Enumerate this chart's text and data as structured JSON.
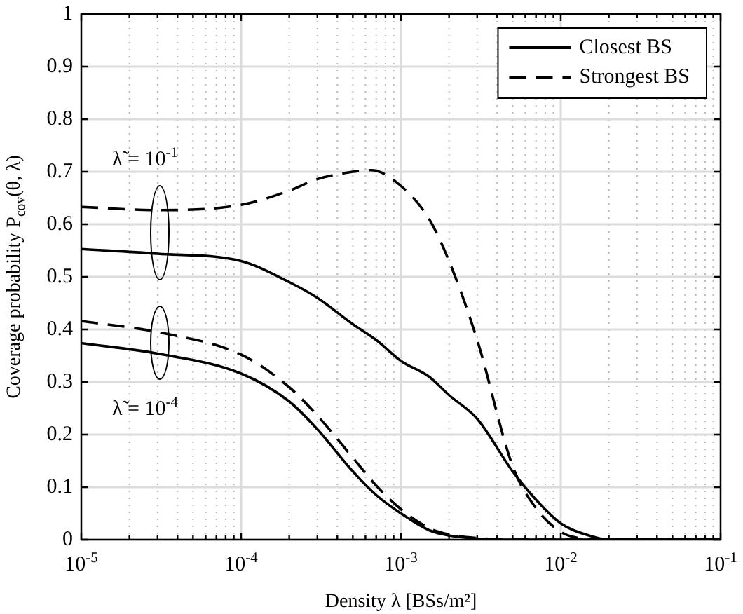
{
  "chart_data": {
    "type": "line",
    "xlabel": "Density λ [BSs/m²]",
    "ylabel": "Coverage probability P$_{cov}$(θ, λ)",
    "log": "x",
    "grid": true,
    "legend": "top right",
    "marker": "none",
    "xlim": [
      1e-05,
      0.1
    ],
    "ylim": [
      0,
      1
    ],
    "xticks": [
      {
        "value": 1e-05,
        "label": "10$^{-5}$"
      },
      {
        "value": 2e-05,
        "label": null
      },
      {
        "value": 3e-05,
        "label": null
      },
      {
        "value": 4e-05,
        "label": null
      },
      {
        "value": 5e-05,
        "label": null
      },
      {
        "value": 6e-05,
        "label": null
      },
      {
        "value": 7e-05,
        "label": null
      },
      {
        "value": 8e-05,
        "label": null
      },
      {
        "value": 9e-05,
        "label": null
      },
      {
        "value": 0.0001,
        "label": "10$^{-4}$"
      },
      {
        "value": 0.0002,
        "label": null
      },
      {
        "value": 0.0003,
        "label": null
      },
      {
        "value": 0.0004,
        "label": null
      },
      {
        "value": 0.0005,
        "label": null
      },
      {
        "value": 0.0006,
        "label": null
      },
      {
        "value": 0.0007,
        "label": null
      },
      {
        "value": 0.0008,
        "label": null
      },
      {
        "value": 0.0009,
        "label": null
      },
      {
        "value": 0.001,
        "label": "10$^{-3}$"
      },
      {
        "value": 0.002,
        "label": null
      },
      {
        "value": 0.003,
        "label": null
      },
      {
        "value": 0.004,
        "label": null
      },
      {
        "value": 0.005,
        "label": null
      },
      {
        "value": 0.006,
        "label": null
      },
      {
        "value": 0.007,
        "label": null
      },
      {
        "value": 0.008,
        "label": null
      },
      {
        "value": 0.009,
        "label": null
      },
      {
        "value": 0.01,
        "label": "10$^{-2}$"
      },
      {
        "value": 0.02,
        "label": null
      },
      {
        "value": 0.03,
        "label": null
      },
      {
        "value": 0.04,
        "label": null
      },
      {
        "value": 0.05,
        "label": null
      },
      {
        "value": 0.06,
        "label": null
      },
      {
        "value": 0.07,
        "label": null
      },
      {
        "value": 0.08,
        "label": null
      },
      {
        "value": 0.09,
        "label": null
      },
      {
        "value": 0.1,
        "label": "10$^{-1}$"
      }
    ],
    "yticks": [
      0,
      0.1,
      0.2,
      0.3,
      0.4,
      0.5,
      0.6,
      0.7,
      0.8,
      0.9,
      1
    ],
    "annotations": [
      "λ̃ = 10$^{-1}$",
      "λ̃ = 10$^{-4}$"
    ],
    "series": [
      {
        "name": "Closest BS",
        "color": "#000000",
        "line_style": "solid",
        "x": [
          1e-05,
          3e-05,
          0.0001,
          0.0002,
          0.0003,
          0.0005,
          0.0007,
          0.001,
          0.0015,
          0.002,
          0.003,
          0.005,
          0.007,
          0.01,
          0.015,
          0.02,
          0.1
        ],
        "values": [
          0.553,
          0.544,
          0.53,
          0.49,
          0.46,
          0.41,
          0.38,
          0.34,
          0.31,
          0.275,
          0.23,
          0.13,
          0.076,
          0.031,
          0.008,
          0,
          0
        ]
      },
      {
        "name": "Strongest BS",
        "color": "#000000",
        "line_style": "dashed",
        "x": [
          1e-05,
          3e-05,
          0.0001,
          0.0002,
          0.0003,
          0.0005,
          0.00065,
          0.001,
          0.0015,
          0.002,
          0.003,
          0.005,
          0.007,
          0.01,
          0.013,
          0.02,
          0.1
        ],
        "values": [
          0.633,
          0.627,
          0.637,
          0.664,
          0.686,
          0.7,
          0.703,
          0.673,
          0.61,
          0.53,
          0.38,
          0.14,
          0.06,
          0.015,
          0.003,
          0,
          0
        ]
      },
      {
        "color": "#000000",
        "line_style": "solid",
        "x": [
          1e-05,
          3e-05,
          0.0001,
          0.0002,
          0.0003,
          0.0005,
          0.0007,
          0.001,
          0.0015,
          0.002,
          0.003,
          0.005,
          0.1
        ],
        "values": [
          0.374,
          0.354,
          0.316,
          0.263,
          0.21,
          0.13,
          0.085,
          0.05,
          0.018,
          0.008,
          0.002,
          0,
          0
        ]
      },
      {
        "color": "#000000",
        "line_style": "dashed",
        "x": [
          1e-05,
          3e-05,
          0.0001,
          0.0002,
          0.0003,
          0.0005,
          0.0007,
          0.001,
          0.0015,
          0.002,
          0.003,
          0.005,
          0.1
        ],
        "values": [
          0.416,
          0.395,
          0.352,
          0.29,
          0.236,
          0.156,
          0.103,
          0.058,
          0.022,
          0.01,
          0.003,
          0,
          0
        ]
      }
    ]
  }
}
